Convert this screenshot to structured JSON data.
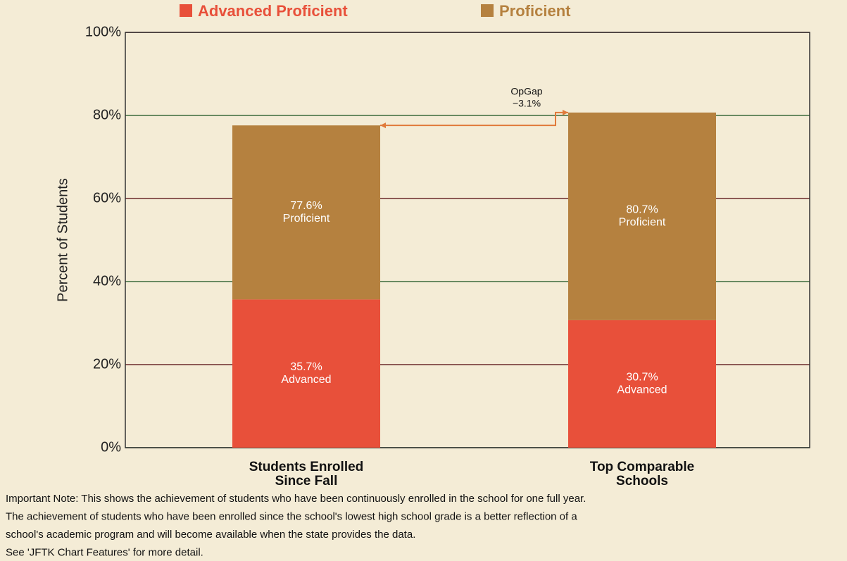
{
  "chart_data": {
    "type": "stacked_bar",
    "ylabel": "Percent of Students",
    "categories": [
      [
        "Students Enrolled",
        "Since Fall"
      ],
      [
        "Top Comparable",
        "Schools"
      ]
    ],
    "series": [
      {
        "name": "Advanced Proficient",
        "color": "#e8503a",
        "values": [
          35.7,
          30.7
        ],
        "value_labels": [
          "35.7%",
          "30.7%"
        ],
        "segment_text": "Advanced"
      },
      {
        "name": "Proficient",
        "color": "#b5813f",
        "values": [
          41.9,
          50.0
        ]
      }
    ],
    "totals": [
      77.6,
      80.7
    ],
    "total_labels": [
      "77.6%",
      "80.7%"
    ],
    "annotation": {
      "title": "OpGap",
      "text": "−3.1%"
    },
    "ylim": [
      0,
      100
    ],
    "yticks": [
      {
        "value": 0,
        "label": "0%"
      },
      {
        "value": 20,
        "label": "20%"
      },
      {
        "value": 40,
        "label": "40%"
      },
      {
        "value": 60,
        "label": "60%"
      },
      {
        "value": 80,
        "label": "80%"
      },
      {
        "value": 100,
        "label": "100%"
      }
    ],
    "grid": true,
    "notes": [
      "Important Note: This shows the achievement of students who have been continuously enrolled in the school for one full year.",
      "The achievement of students who have been enrolled since the school's lowest high school grade is a better reflection of a",
      "school's academic program and will become available when the state provides the data.",
      "See 'JFTK Chart Features' for more detail."
    ]
  }
}
